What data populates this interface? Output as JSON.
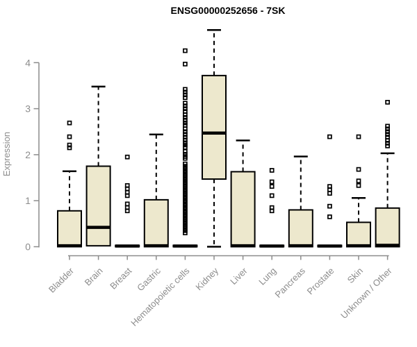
{
  "title": "ENSG00000252656 - 7SK",
  "colors": {
    "box_fill": "#EDE8CD",
    "box_stroke": "#000000",
    "median": "#000000",
    "whisker": "#000000",
    "outlier": "#000000",
    "axis": "#8c8c8c",
    "text_gray": "#8c8c8c",
    "title_color": "#000000",
    "background": "#ffffff"
  },
  "chart_data": {
    "type": "boxplot",
    "title": "ENSG00000252656 - 7SK",
    "xlabel": "",
    "ylabel": "Expression",
    "ylim": [
      0,
      4.75
    ],
    "yticks": [
      0,
      1,
      2,
      3,
      4
    ],
    "grid": false,
    "legend": "none",
    "categories": [
      "Bladder",
      "Brain",
      "Breast",
      "Gastric",
      "Hematopoietic cells",
      "Kidney",
      "Liver",
      "Lung",
      "Pancreas",
      "Prostate",
      "Skin",
      "Unknown / Other"
    ],
    "series": [
      {
        "label": "Bladder",
        "q1": 0,
        "median": 0.02,
        "q3": 0.78,
        "whisker_low": 0,
        "whisker_high": 1.64,
        "outliers": [
          2.69,
          2.39,
          2.21,
          2.15
        ]
      },
      {
        "label": "Brain",
        "q1": 0.02,
        "median": 0.42,
        "q3": 1.75,
        "whisker_low": 0.02,
        "whisker_high": 3.48,
        "outliers": []
      },
      {
        "label": "Breast",
        "q1": 0,
        "median": 0.015,
        "q3": 0.03,
        "whisker_low": 0,
        "whisker_high": 0.03,
        "outliers": [
          1.95,
          1.33,
          1.26,
          1.18,
          1.11,
          0.93,
          0.85,
          0.78
        ]
      },
      {
        "label": "Gastric",
        "q1": 0,
        "median": 0.02,
        "q3": 1.02,
        "whisker_low": 0,
        "whisker_high": 2.44,
        "outliers": []
      },
      {
        "label": "Hematopoietic cells",
        "q1": 0,
        "median": 0.015,
        "q3": 0.03,
        "whisker_low": 0,
        "whisker_high": 0.03,
        "outliers": [
          4.26,
          3.97,
          3.42,
          3.36,
          3.3,
          3.24,
          3.12,
          3.06,
          3.0,
          2.94,
          2.87,
          2.81,
          2.75,
          2.69,
          2.64,
          2.56,
          2.5,
          2.44,
          2.38,
          2.32,
          2.26,
          2.21,
          2.16,
          2.07,
          2.01,
          1.96,
          1.92,
          1.8,
          1.75,
          1.7,
          1.65,
          1.6,
          1.55,
          1.5,
          1.45,
          1.4,
          1.35,
          1.3,
          1.25,
          1.2,
          1.15,
          1.1,
          1.05,
          1.0,
          0.95,
          0.9,
          0.85,
          0.8,
          0.75,
          0.7,
          0.65,
          0.6,
          0.55,
          0.5,
          0.45,
          0.4,
          0.35,
          0.3
        ]
      },
      {
        "label": "Kidney",
        "q1": 1.47,
        "median": 2.47,
        "q3": 3.72,
        "whisker_low": 0,
        "whisker_high": 4.71,
        "outliers": []
      },
      {
        "label": "Liver",
        "q1": 0,
        "median": 0.02,
        "q3": 1.63,
        "whisker_low": 0,
        "whisker_high": 2.31,
        "outliers": []
      },
      {
        "label": "Lung",
        "q1": 0,
        "median": 0.015,
        "q3": 0.03,
        "whisker_low": 0,
        "whisker_high": 0.03,
        "outliers": [
          1.66,
          1.41,
          1.31,
          1.11,
          0.85,
          0.78
        ]
      },
      {
        "label": "Pancreas",
        "q1": 0,
        "median": 0.02,
        "q3": 0.8,
        "whisker_low": 0,
        "whisker_high": 1.96,
        "outliers": []
      },
      {
        "label": "Prostate",
        "q1": 0,
        "median": 0.015,
        "q3": 0.03,
        "whisker_low": 0,
        "whisker_high": 0.03,
        "outliers": [
          2.39,
          1.31,
          1.24,
          1.16,
          0.88,
          0.65
        ]
      },
      {
        "label": "Skin",
        "q1": 0,
        "median": 0.02,
        "q3": 0.53,
        "whisker_low": 0,
        "whisker_high": 1.06,
        "outliers": [
          2.39,
          1.68,
          1.43,
          1.33
        ]
      },
      {
        "label": "Unknown / Other",
        "q1": 0,
        "median": 0.03,
        "q3": 0.84,
        "whisker_low": 0,
        "whisker_high": 2.03,
        "outliers": [
          3.14,
          2.62,
          2.56,
          2.5,
          2.44,
          2.38,
          2.31,
          2.25,
          2.19
        ]
      }
    ]
  }
}
